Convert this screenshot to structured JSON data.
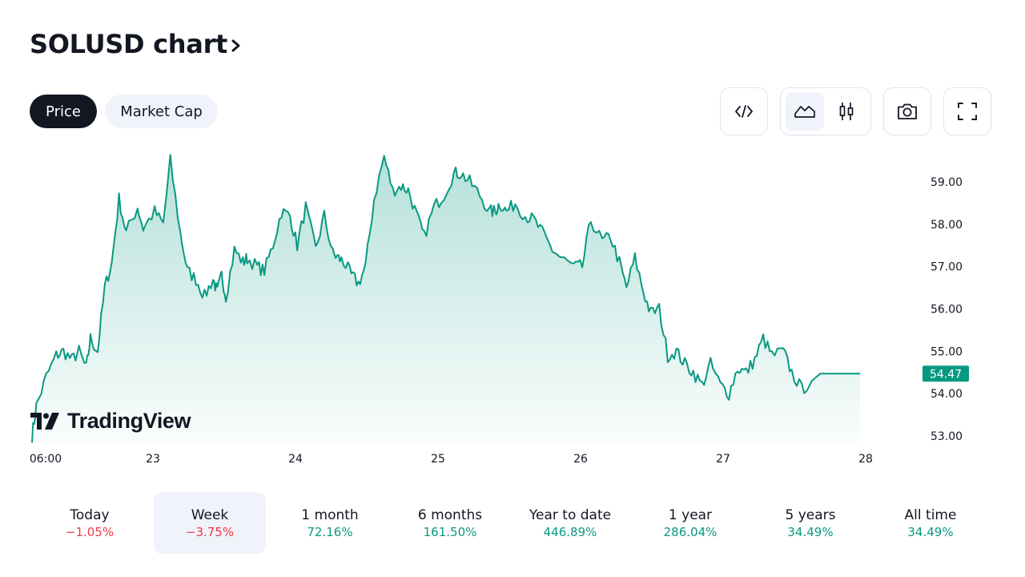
{
  "header": {
    "title": "SOLUSD chart"
  },
  "tabs": [
    {
      "label": "Price",
      "active": true
    },
    {
      "label": "Market Cap",
      "active": false
    }
  ],
  "toolbar": {
    "embed_icon": "code-icon",
    "chart_type_active": "area",
    "area_icon": "area-chart-icon",
    "candles_icon": "candlestick-icon",
    "snapshot_icon": "camera-icon",
    "fullscreen_icon": "fullscreen-icon"
  },
  "watermark": {
    "text": "TradingView"
  },
  "colors": {
    "line": "#089981",
    "negative": "#f23645",
    "positive": "#089981",
    "last_price_tag": "#089981"
  },
  "periods": [
    {
      "label": "Today",
      "value": "−1.05%",
      "sign": "neg",
      "active": false
    },
    {
      "label": "Week",
      "value": "−3.75%",
      "sign": "neg",
      "active": true
    },
    {
      "label": "1 month",
      "value": "72.16%",
      "sign": "pos",
      "active": false
    },
    {
      "label": "6 months",
      "value": "161.50%",
      "sign": "pos",
      "active": false
    },
    {
      "label": "Year to date",
      "value": "446.89%",
      "sign": "pos",
      "active": false
    },
    {
      "label": "1 year",
      "value": "286.04%",
      "sign": "pos",
      "active": false
    },
    {
      "label": "5 years",
      "value": "34.49%",
      "sign": "pos",
      "active": false
    },
    {
      "label": "All time",
      "value": "34.49%",
      "sign": "pos",
      "active": false
    }
  ],
  "chart_data": {
    "type": "area",
    "ylim": [
      52.7,
      59.8
    ],
    "y_ticks": [
      "59.00",
      "58.00",
      "57.00",
      "56.00",
      "55.00",
      "54.00",
      "53.00"
    ],
    "x_ticks": [
      {
        "label": "06:00",
        "x": 0
      },
      {
        "label": "23",
        "x": 0.5
      },
      {
        "label": "24",
        "x": 1.5
      },
      {
        "label": "25",
        "x": 2.5
      },
      {
        "label": "26",
        "x": 3.5
      },
      {
        "label": "27",
        "x": 4.5
      },
      {
        "label": "28",
        "x": 5.5
      }
    ],
    "last_price": "54.47",
    "x": [
      0,
      0.03,
      0.1,
      0.17,
      0.22,
      0.28,
      0.33,
      0.38,
      0.41,
      0.46,
      0.51,
      0.56,
      0.61,
      0.66,
      0.74,
      0.78,
      0.86,
      0.92,
      0.97,
      1.04,
      1.09,
      1.15,
      1.21,
      1.27,
      1.3,
      1.33,
      1.36,
      1.42,
      1.48,
      1.51,
      1.58,
      1.63,
      1.69,
      1.75,
      1.81,
      1.86,
      1.92,
      1.99,
      2.05,
      2.11,
      2.15,
      2.19,
      2.24,
      2.29,
      2.34,
      2.4,
      2.47,
      2.53,
      2.59,
      2.64,
      2.7,
      2.75,
      2.82,
      2.89,
      2.96,
      3.01,
      3.07,
      3.14,
      3.21,
      3.25,
      3.28,
      3.33,
      3.39,
      3.46,
      3.52,
      3.58,
      3.65,
      3.71,
      3.8,
      3.86,
      3.92,
      4.0,
      4.06,
      4.12,
      4.17,
      4.23,
      4.29,
      4.34,
      4.4,
      4.46,
      4.52,
      4.58,
      4.64,
      4.7,
      4.76,
      4.83,
      4.89,
      4.95,
      5.01,
      5.07,
      5.13,
      5.19,
      5.27,
      5.33,
      5.4,
      5.47,
      5.53,
      5.6,
      5.66,
      5.71,
      5.76,
      5.81
    ],
    "values": [
      53.0,
      53.7,
      54.4,
      54.9,
      55.0,
      54.8,
      55.0,
      54.6,
      55.3,
      55.0,
      56.5,
      57.1,
      58.6,
      57.8,
      58.4,
      57.9,
      58.3,
      58.0,
      59.5,
      57.8,
      56.9,
      56.7,
      56.3,
      56.7,
      56.4,
      56.8,
      56.3,
      57.4,
      57.1,
      57.2,
      57.0,
      56.9,
      57.5,
      58.3,
      58.2,
      57.5,
      58.4,
      57.4,
      58.2,
      57.3,
      57.2,
      57.1,
      56.8,
      56.6,
      57.0,
      58.6,
      59.6,
      58.8,
      58.9,
      58.8,
      58.2,
      57.7,
      58.4,
      58.7,
      59.2,
      59.2,
      59.0,
      58.7,
      58.3,
      58.3,
      58.5,
      58.3,
      58.5,
      58.2,
      58.1,
      57.8,
      57.4,
      57.2,
      57.0,
      57.0,
      58.1,
      57.6,
      57.7,
      57.1,
      56.5,
      57.2,
      56.4,
      55.9,
      56.0,
      54.9,
      55.0,
      54.7,
      54.5,
      54.2,
      54.7,
      54.2,
      54.0,
      54.6,
      54.5,
      54.8,
      55.3,
      54.9,
      55.0,
      54.5,
      54.1,
      54.3,
      54.47,
      54.47,
      54.47,
      54.47,
      54.47,
      54.47
    ]
  }
}
